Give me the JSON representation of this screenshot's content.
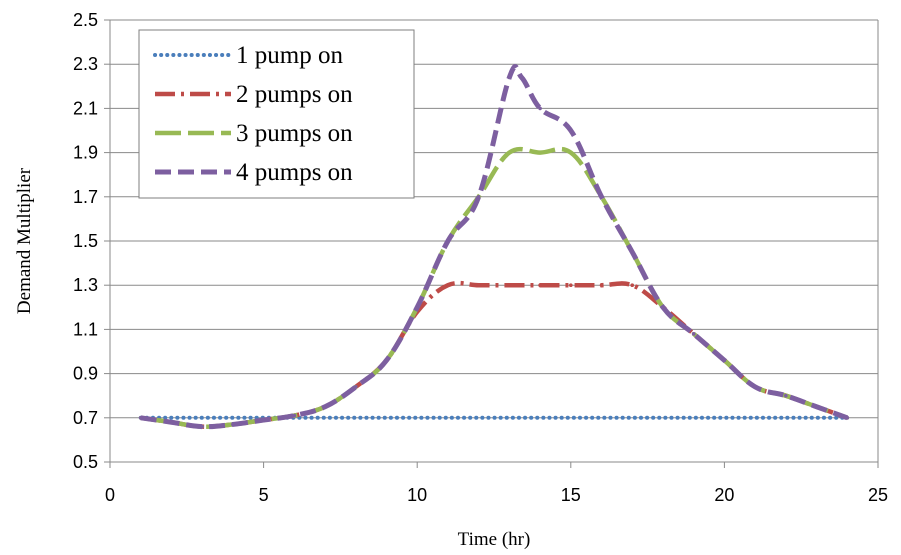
{
  "chart_data": {
    "type": "line",
    "title": "",
    "xlabel": "Time (hr)",
    "ylabel": "Demand Multiplier",
    "xlim": [
      0,
      25
    ],
    "ylim": [
      0.5,
      2.5
    ],
    "xticks": [
      0,
      5,
      10,
      15,
      20,
      25
    ],
    "xtick_labels": [
      "0",
      "5",
      "10",
      "15",
      "20",
      "25"
    ],
    "yticks": [
      0.5,
      0.7,
      0.9,
      1.1,
      1.3,
      1.5,
      1.7,
      1.9,
      2.1,
      2.3,
      2.5
    ],
    "ytick_labels": [
      "0.5",
      "0.7",
      "0.9",
      "1.1",
      "1.3",
      "1.5",
      "1.7",
      "1.9",
      "2.1",
      "2.3",
      "2.5"
    ],
    "grid": "horizontal",
    "legend_position": "top-left",
    "series": [
      {
        "name": "1 pump on",
        "color": "#4a7ebb",
        "style": "dotted",
        "x": [
          1,
          24
        ],
        "y": [
          0.7,
          0.7
        ]
      },
      {
        "name": "2 pumps on",
        "color": "#be4b48",
        "style": "dash-dot",
        "x": [
          1,
          2,
          3,
          4,
          5,
          6,
          7,
          8,
          9,
          10,
          11,
          12,
          13,
          14,
          15,
          16,
          17,
          18,
          19,
          20,
          21,
          22,
          23,
          24
        ],
        "y": [
          0.7,
          0.68,
          0.66,
          0.67,
          0.69,
          0.71,
          0.75,
          0.84,
          0.96,
          1.18,
          1.3,
          1.3,
          1.3,
          1.3,
          1.3,
          1.3,
          1.3,
          1.2,
          1.08,
          0.96,
          0.84,
          0.8,
          0.75,
          0.7
        ]
      },
      {
        "name": "3 pumps on",
        "color": "#98b954",
        "style": "long-dash",
        "x": [
          1,
          2,
          3,
          4,
          5,
          6,
          7,
          8,
          9,
          10,
          11,
          12,
          13,
          14,
          15,
          16,
          17,
          18,
          19,
          20,
          21,
          22,
          23,
          24
        ],
        "y": [
          0.7,
          0.68,
          0.66,
          0.67,
          0.69,
          0.71,
          0.75,
          0.84,
          0.96,
          1.2,
          1.5,
          1.7,
          1.9,
          1.9,
          1.9,
          1.7,
          1.45,
          1.2,
          1.08,
          0.96,
          0.84,
          0.8,
          0.75,
          0.7
        ]
      },
      {
        "name": "4 pumps on",
        "color": "#7d5fa0",
        "style": "dashed",
        "x": [
          1,
          2,
          3,
          4,
          5,
          6,
          7,
          8,
          9,
          10,
          11,
          12,
          13,
          13.4,
          14,
          15,
          16,
          17,
          18,
          19,
          20,
          21,
          22,
          23,
          24
        ],
        "y": [
          0.7,
          0.68,
          0.66,
          0.67,
          0.69,
          0.71,
          0.75,
          0.84,
          0.96,
          1.2,
          1.5,
          1.7,
          2.24,
          2.24,
          2.1,
          2.0,
          1.7,
          1.45,
          1.2,
          1.08,
          0.96,
          0.84,
          0.8,
          0.75,
          0.7
        ]
      }
    ]
  }
}
